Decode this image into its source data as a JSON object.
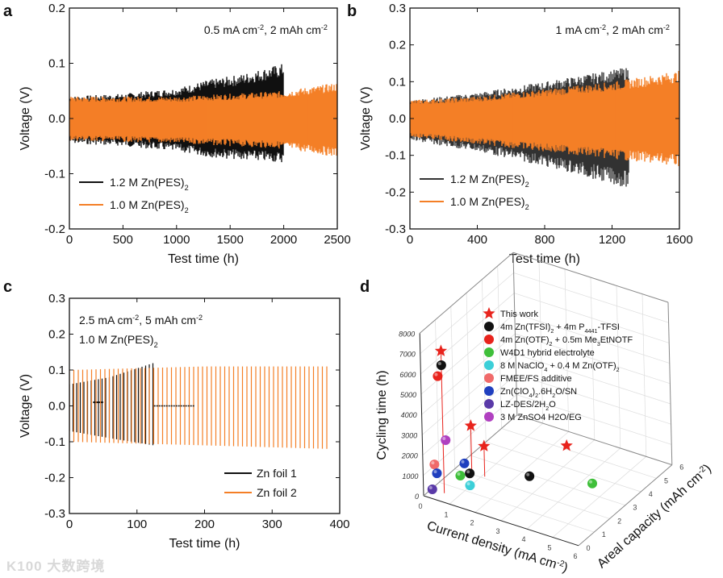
{
  "watermark": "K100 大数跨境",
  "colors": {
    "black": "#111111",
    "orange": "#f47f26",
    "red": "#e8231c"
  },
  "chart_data": [
    {
      "panel": "a",
      "type": "line",
      "annotation": [
        "0.5 mA cm",
        "-2",
        ", 2 mAh cm",
        "-2"
      ],
      "xlabel": "Test time (h)",
      "ylabel": "Voltage (V)",
      "xlim": [
        0,
        2500
      ],
      "ylim": [
        -0.2,
        0.2
      ],
      "xticks": [
        "0",
        "500",
        "1000",
        "1500",
        "2000",
        "2500"
      ],
      "yticks": [
        "-0.2",
        "-0.1",
        "0.0",
        "0.1",
        "0.2"
      ],
      "legend": "bottom-left",
      "series": [
        {
          "name": "1.2 M Zn(PES)",
          "sub": "2",
          "color": "#111111",
          "envelope": [
            [
              0,
              0.04,
              -0.045
            ],
            [
              500,
              0.045,
              -0.05
            ],
            [
              1000,
              0.055,
              -0.06
            ],
            [
              1300,
              0.07,
              -0.07
            ],
            [
              1600,
              0.08,
              -0.075
            ],
            [
              2000,
              0.1,
              -0.08
            ]
          ]
        },
        {
          "name": "1.0 M Zn(PES)",
          "sub": "2",
          "color": "#f47f26",
          "envelope": [
            [
              0,
              0.04,
              -0.04
            ],
            [
              1000,
              0.04,
              -0.045
            ],
            [
              2000,
              0.05,
              -0.055
            ],
            [
              2500,
              0.065,
              -0.07
            ]
          ]
        }
      ]
    },
    {
      "panel": "b",
      "type": "line",
      "annotation": [
        "1 mA cm",
        "-2",
        ", 2 mAh cm",
        "-2"
      ],
      "xlabel": "Test time (h)",
      "ylabel": "Voltage (V)",
      "xlim": [
        0,
        1600
      ],
      "ylim": [
        -0.3,
        0.3
      ],
      "xticks": [
        "0",
        "400",
        "800",
        "1200",
        "1600"
      ],
      "yticks": [
        "-0.3",
        "-0.2",
        "-0.1",
        "0.0",
        "0.1",
        "0.2",
        "0.3"
      ],
      "legend": "bottom-left",
      "series": [
        {
          "name": "1.2 M Zn(PES)",
          "sub": "2",
          "color": "#333333",
          "envelope": [
            [
              0,
              0.05,
              -0.06
            ],
            [
              400,
              0.07,
              -0.09
            ],
            [
              800,
              0.1,
              -0.13
            ],
            [
              1300,
              0.14,
              -0.19
            ]
          ]
        },
        {
          "name": "1.0 M Zn(PES)",
          "sub": "2",
          "color": "#f47f26",
          "envelope": [
            [
              0,
              0.05,
              -0.05
            ],
            [
              400,
              0.06,
              -0.07
            ],
            [
              800,
              0.08,
              -0.09
            ],
            [
              1200,
              0.1,
              -0.11
            ],
            [
              1600,
              0.13,
              -0.13
            ]
          ]
        }
      ]
    },
    {
      "panel": "c",
      "type": "line",
      "annotation": [
        "2.5 mA cm",
        "-2",
        ", 5 mAh cm",
        "-2",
        "1.0 M Zn(PES)",
        "2"
      ],
      "xlabel": "Test time (h)",
      "ylabel": "Voltage (V)",
      "xlim": [
        0,
        400
      ],
      "ylim": [
        -0.3,
        0.3
      ],
      "xticks": [
        "0",
        "100",
        "200",
        "300",
        "400"
      ],
      "yticks": [
        "-0.3",
        "-0.2",
        "-0.1",
        "0.0",
        "0.1",
        "0.2",
        "0.3"
      ],
      "legend": "bottom-right",
      "series": [
        {
          "name": "Zn foil 1",
          "color": "#111111",
          "envelope": [
            [
              0,
              0.06,
              -0.07
            ],
            [
              60,
              0.08,
              -0.09
            ],
            [
              125,
              0.12,
              -0.11
            ]
          ]
        },
        {
          "name": "Zn foil 2",
          "color": "#f47f26",
          "envelope": [
            [
              0,
              0.1,
              -0.1
            ],
            [
              200,
              0.11,
              -0.11
            ],
            [
              385,
              0.11,
              -0.12
            ]
          ]
        }
      ]
    },
    {
      "panel": "d",
      "type": "scatter3d",
      "xlabel": "Current density (mA cm",
      "xlabel_sup": "-2",
      "ylabel": "Areal capacity (mAh cm",
      "ylabel_sup": "-2",
      "zlabel": "Cycling time (h)",
      "xlim": [
        0,
        6
      ],
      "ylim": [
        0,
        6
      ],
      "zlim": [
        0,
        8000
      ],
      "xticks": [
        "0",
        "1",
        "2",
        "3",
        "4",
        "5",
        "6"
      ],
      "yticks": [
        "0",
        "1",
        "2",
        "3",
        "4",
        "5",
        "6"
      ],
      "zticks": [
        "0",
        "1000",
        "2000",
        "3000",
        "4000",
        "5000",
        "6000",
        "7000",
        "8000"
      ],
      "series": [
        {
          "name": "This work",
          "color": "#e8231c",
          "marker": "star",
          "stem": true,
          "points": [
            [
              0.5,
              0.5,
              7000
            ],
            [
              0.6,
              2.1,
              2300
            ],
            [
              1.1,
              2.1,
              1500
            ],
            [
              2.4,
              5.2,
              0
            ]
          ]
        },
        {
          "name": "4m Zn(TFSI)2 + 4m P4441-TFSI",
          "label": [
            "4m Zn(TFSI)",
            "2",
            " + 4m P",
            "4441",
            "-TFSI"
          ],
          "color": "#111111",
          "points": [
            [
              0.5,
              0.5,
              6300
            ],
            [
              1.2,
              1,
              930
            ],
            [
              2.35,
              2.9,
              0
            ]
          ]
        },
        {
          "name": "4m Zn(OTF)2 + 0.5m Me3EtNOTF",
          "label": [
            "4m Zn(OTF)",
            "2",
            " + 0.5m Me",
            "3",
            "EtNOTF"
          ],
          "color": "#e8231c",
          "points": [
            [
              0.35,
              0.5,
              5700
            ]
          ]
        },
        {
          "name": "W4D1 hybrid electrolyte",
          "label": [
            "W4D1 hybrid electrolyte"
          ],
          "color": "#3fbf3a",
          "points": [
            [
              0.83,
              1,
              670
            ],
            [
              4.36,
              3.6,
              0
            ]
          ]
        },
        {
          "name": "8 M NaClO4 + 0.4 M Zn(OTF)2",
          "label": [
            "8 M NaClO",
            "4",
            " + 0.4 M Zn(OTF)",
            "2",
            ""
          ],
          "color": "#3ccfd8",
          "points": [
            [
              1.2,
              1,
              340
            ]
          ]
        },
        {
          "name": "FMEE/FS additive",
          "label": [
            "FMEE/FS additive"
          ],
          "color": "#f06a6a",
          "points": [
            [
              0.14,
              0.5,
              1270
            ]
          ]
        },
        {
          "name": "Zn(ClO4)2.6H2O/SN",
          "label": [
            "Zn(ClO",
            "4",
            ")",
            "2",
            ".6H",
            "2",
            "O/SN"
          ],
          "color": "#1f3fbf",
          "points": [
            [
              0.23,
              0.5,
              870
            ],
            [
              1.0,
              1,
              1340
            ]
          ]
        },
        {
          "name": "LZ-DES/2H2O",
          "label": [
            "LZ-DES/2H",
            "2",
            "O"
          ],
          "color": "#5a3aa8",
          "points": [
            [
              0.19,
              0.25,
              230
            ]
          ]
        },
        {
          "name": "3 M ZnSO4 H2O/EG",
          "label": [
            "3 M ZnSO4 H2O/EG"
          ],
          "color": "#b040c0",
          "points": [
            [
              0.6,
              0.5,
              2650
            ]
          ]
        }
      ]
    }
  ]
}
